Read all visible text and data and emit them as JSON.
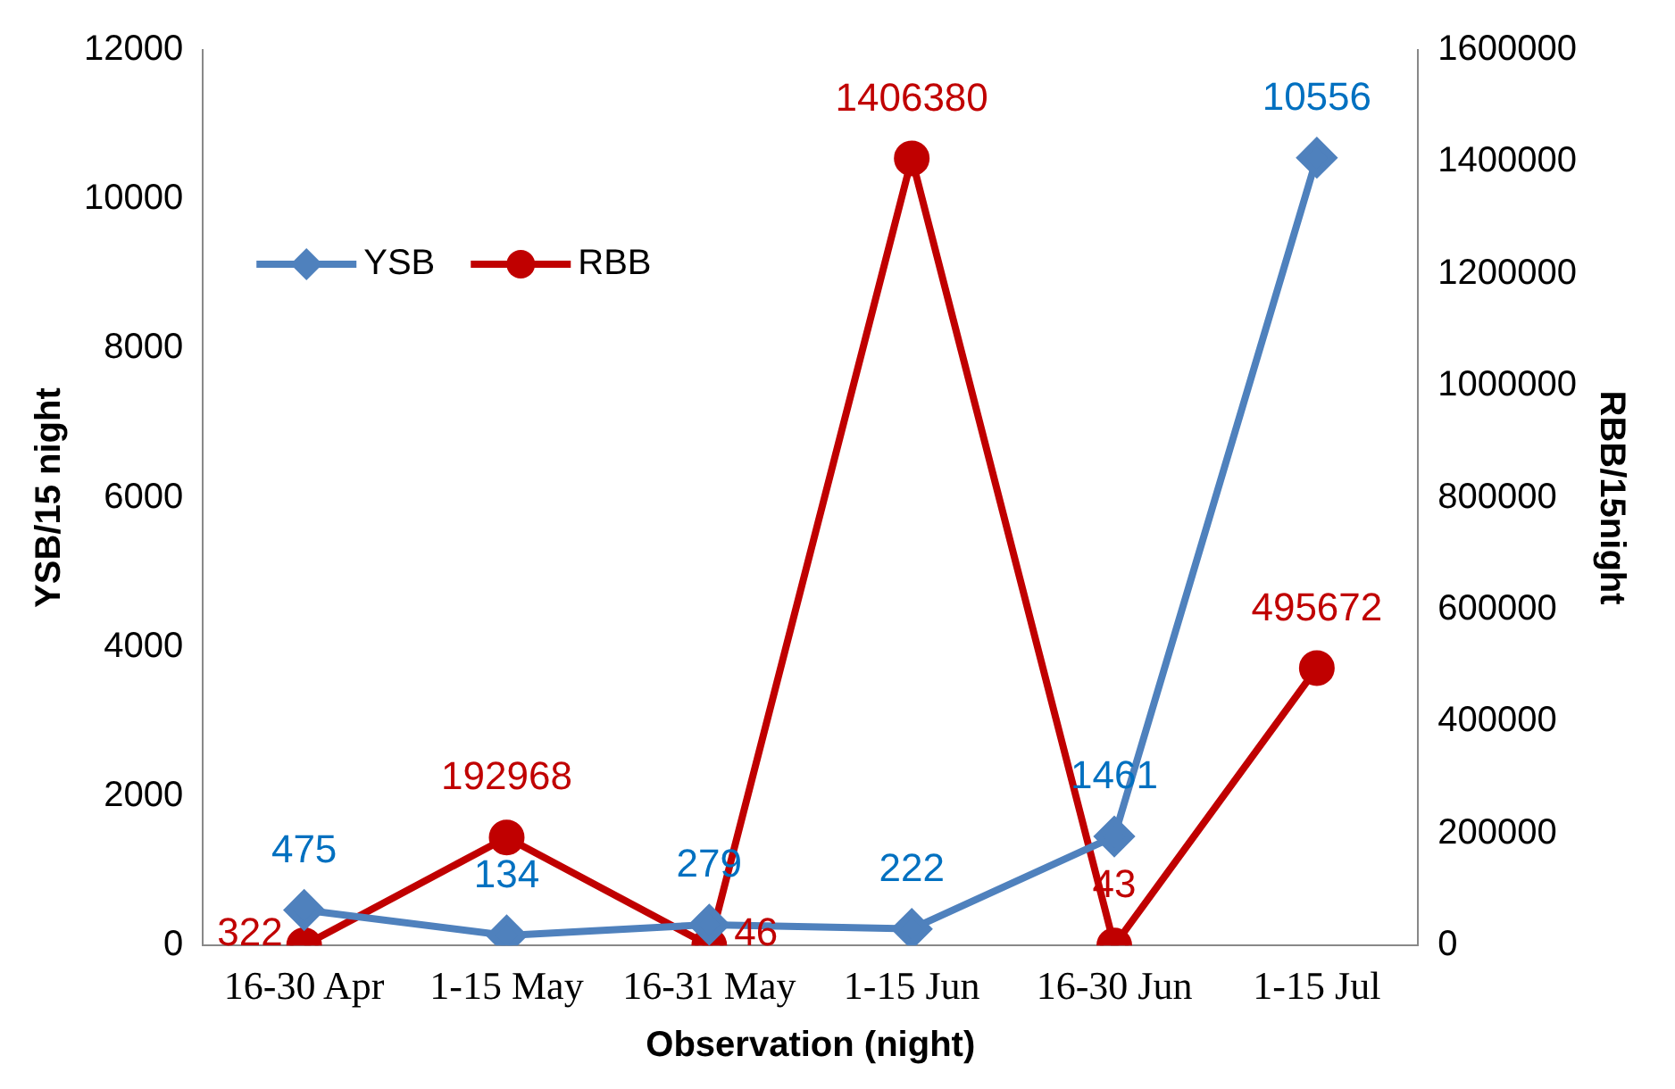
{
  "chart_data": {
    "type": "line",
    "xlabel": "Observation (night)",
    "ylabel": "YSB/15 night",
    "y2label": "RBB/15night",
    "categories": [
      "16-30 Apr",
      "1-15 May",
      "16-31 May",
      "1-15 Jun",
      "16-30 Jun",
      "1-15 Jul"
    ],
    "series": [
      {
        "name": "YSB",
        "color": "#4f81bd",
        "marker": "diamond",
        "values": [
          475,
          134,
          279,
          222,
          1461,
          10556
        ]
      },
      {
        "name": "RBB",
        "color": "#c00000",
        "marker": "circle",
        "axis": "y2",
        "values": [
          322,
          192968,
          46,
          1406380,
          43,
          495672
        ]
      }
    ],
    "ylim": [
      0,
      12000
    ],
    "yticks": [
      0,
      2000,
      4000,
      6000,
      8000,
      10000,
      12000
    ],
    "y2lim": [
      0,
      1600000
    ],
    "y2ticks": [
      0,
      200000,
      400000,
      600000,
      800000,
      1000000,
      1200000,
      1400000,
      1600000
    ],
    "data_labels": true,
    "legend": "top left",
    "grid": false,
    "line_style": "solid"
  }
}
